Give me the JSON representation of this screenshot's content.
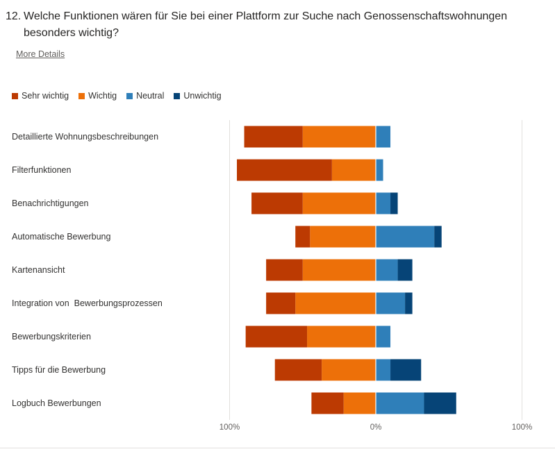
{
  "question": {
    "number": "12.",
    "text": "Welche Funktionen wären für Sie bei einer Plattform zur Suche nach Genossenschaftswohnungen besonders wichtig?"
  },
  "more_details_label": "More Details",
  "colors": {
    "sehr_wichtig": "#bc3a02",
    "wichtig": "#ed7009",
    "neutral": "#2f7fb9",
    "unwichtig": "#064477"
  },
  "chart_data": {
    "type": "bar",
    "orientation": "horizontal-diverging",
    "categories": [
      "Detaillierte Wohnungsbeschreibungen",
      "Filterfunktionen",
      "Benachrichtigungen",
      "Automatische Bewerbung",
      "Kartenansicht",
      "Integration von  Bewerbungsprozessen",
      "Bewerbungskriterien",
      "Tipps für die Bewerbung",
      "Logbuch Bewerbungen"
    ],
    "series": [
      {
        "name": "Sehr wichtig",
        "color": "#bc3a02",
        "side": "negative",
        "values": [
          40,
          65,
          35,
          10,
          25,
          20,
          42,
          32,
          22
        ]
      },
      {
        "name": "Wichtig",
        "color": "#ed7009",
        "side": "negative",
        "values": [
          50,
          30,
          50,
          45,
          50,
          55,
          47,
          37,
          22
        ]
      },
      {
        "name": "Neutral",
        "color": "#2f7fb9",
        "side": "positive",
        "values": [
          10,
          5,
          10,
          40,
          15,
          20,
          10,
          10,
          33
        ]
      },
      {
        "name": "Unwichtig",
        "color": "#064477",
        "side": "positive",
        "values": [
          0,
          0,
          5,
          5,
          10,
          5,
          0,
          21,
          22
        ]
      }
    ],
    "xlim": [
      -100,
      100
    ],
    "xticks": [
      {
        "value": -100,
        "label": "100%"
      },
      {
        "value": 0,
        "label": "0%"
      },
      {
        "value": 100,
        "label": "100%"
      }
    ],
    "legend_position": "top-left",
    "grid": true
  }
}
